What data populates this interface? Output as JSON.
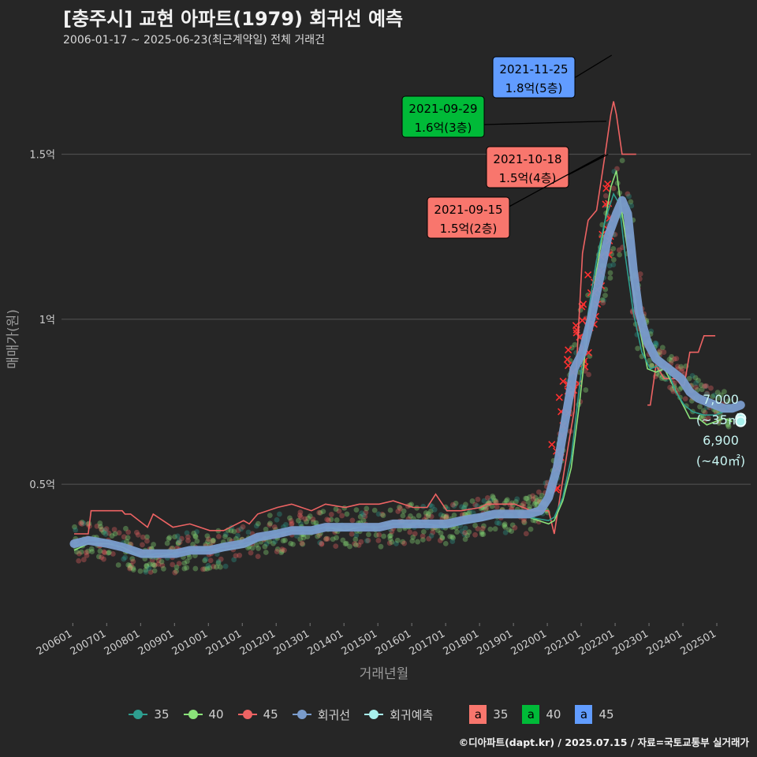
{
  "title": "[충주시] 교현 아파트(1979) 회귀선 예측",
  "subtitle": "2006-01-17 ~ 2025-06-23(최근계약일) 전체 거래건",
  "caption": "©디아파트(dapt.kr) / 2025.07.15 / 자료=국토교통부 실거래가",
  "colors": {
    "background": "#262626",
    "grid": "#555555",
    "area35": "#2e9e8f",
    "area40": "#8be37a",
    "area45": "#ee6363",
    "regression": "#7a9ccc",
    "forecast": "#a8f0ec",
    "label35": "#f8766d",
    "label40": "#00ba38",
    "label45": "#619cff"
  },
  "legend": {
    "lines": [
      {
        "label": "35",
        "color": "#2e9e8f"
      },
      {
        "label": "40",
        "color": "#8be37a"
      },
      {
        "label": "45",
        "color": "#ee6363"
      },
      {
        "label": "회귀선",
        "color": "#7a9ccc"
      },
      {
        "label": "회귀예측",
        "color": "#a8f0ec"
      }
    ],
    "boxes": [
      {
        "glyph": "a",
        "label": "35",
        "color": "#f8766d"
      },
      {
        "glyph": "a",
        "label": "40",
        "color": "#00ba38"
      },
      {
        "glyph": "a",
        "label": "45",
        "color": "#619cff"
      }
    ]
  },
  "chart_data": {
    "type": "line",
    "xlabel": "거래년월",
    "ylabel": "매매가(원)",
    "ylim": [
      0.08,
      1.8
    ],
    "y_unit": "억",
    "y_ticks": [
      {
        "value": 0.5,
        "label": "0.5억"
      },
      {
        "value": 1.0,
        "label": "1억"
      },
      {
        "value": 1.5,
        "label": "1.5억"
      }
    ],
    "x_ticks": [
      "200601",
      "200701",
      "200801",
      "200901",
      "201001",
      "201101",
      "201201",
      "201301",
      "201401",
      "201501",
      "201601",
      "201701",
      "201801",
      "201901",
      "202001",
      "202101",
      "202201",
      "202301",
      "202401",
      "202501"
    ],
    "grid": true,
    "series": [
      {
        "name": "45",
        "points": [
          [
            "2006-01",
            0.35
          ],
          [
            "2006-06",
            0.35
          ],
          [
            "2006-07",
            0.42
          ],
          [
            "2007-06",
            0.42
          ],
          [
            "2007-07",
            0.41
          ],
          [
            "2007-09",
            0.41
          ],
          [
            "2008-03",
            0.37
          ],
          [
            "2008-05",
            0.41
          ],
          [
            "2008-12",
            0.37
          ],
          [
            "2009-06",
            0.38
          ],
          [
            "2010-01",
            0.36
          ],
          [
            "2010-06",
            0.36
          ],
          [
            "2011-01",
            0.39
          ],
          [
            "2011-03",
            0.38
          ],
          [
            "2011-06",
            0.41
          ],
          [
            "2012-01",
            0.43
          ],
          [
            "2012-06",
            0.44
          ],
          [
            "2013-01",
            0.42
          ],
          [
            "2013-06",
            0.44
          ],
          [
            "2014-01",
            0.43
          ],
          [
            "2014-06",
            0.44
          ],
          [
            "2015-01",
            0.44
          ],
          [
            "2015-06",
            0.45
          ],
          [
            "2016-01",
            0.43
          ],
          [
            "2016-06",
            0.43
          ],
          [
            "2016-09",
            0.47
          ],
          [
            "2017-01",
            0.42
          ],
          [
            "2017-06",
            0.42
          ],
          [
            "2018-01",
            0.43
          ],
          [
            "2018-03",
            0.44
          ],
          [
            "2019-01",
            0.44
          ],
          [
            "2019-07",
            0.42
          ],
          [
            "2020-01",
            0.42
          ],
          [
            "2020-03",
            0.35
          ],
          [
            "2020-05",
            0.46
          ],
          [
            "2020-08",
            0.62
          ],
          [
            "2020-10",
            0.72
          ],
          [
            "2021-01",
            1.2
          ],
          [
            "2021-03",
            1.3
          ],
          [
            "2021-06",
            1.33
          ],
          [
            "2021-09",
            1.5
          ],
          [
            "2021-11",
            1.62
          ],
          [
            "2021-12",
            1.66
          ],
          [
            "2022-01",
            1.62
          ],
          [
            "2022-03",
            1.5
          ],
          [
            "2022-08",
            1.5
          ]
        ]
      },
      {
        "name": "45",
        "points": [
          [
            "2022-12",
            0.74
          ],
          [
            "2023-01",
            0.74
          ],
          [
            "2023-03",
            0.86
          ],
          [
            "2023-06",
            0.82
          ],
          [
            "2023-10",
            0.82
          ],
          [
            "2023-12",
            0.8
          ],
          [
            "2024-01",
            0.8
          ],
          [
            "2024-03",
            0.9
          ],
          [
            "2024-06",
            0.9
          ],
          [
            "2024-08",
            0.95
          ],
          [
            "2024-12",
            0.95
          ]
        ]
      },
      {
        "name": "40",
        "points": [
          [
            "2006-01",
            0.3
          ],
          [
            "2006-06",
            0.32
          ],
          [
            "2007-01",
            0.32
          ],
          [
            "2007-06",
            0.31
          ],
          [
            "2008-01",
            0.28
          ],
          [
            "2008-06",
            0.28
          ],
          [
            "2009-01",
            0.29
          ],
          [
            "2009-06",
            0.3
          ],
          [
            "2010-01",
            0.3
          ],
          [
            "2010-06",
            0.3
          ],
          [
            "2011-01",
            0.31
          ],
          [
            "2011-06",
            0.33
          ],
          [
            "2012-01",
            0.35
          ],
          [
            "2012-06",
            0.36
          ],
          [
            "2013-01",
            0.36
          ],
          [
            "2013-06",
            0.37
          ],
          [
            "2014-01",
            0.36
          ],
          [
            "2014-06",
            0.37
          ],
          [
            "2015-01",
            0.37
          ],
          [
            "2015-06",
            0.38
          ],
          [
            "2016-01",
            0.38
          ],
          [
            "2016-06",
            0.38
          ],
          [
            "2017-01",
            0.37
          ],
          [
            "2017-06",
            0.38
          ],
          [
            "2018-01",
            0.39
          ],
          [
            "2018-06",
            0.4
          ],
          [
            "2019-01",
            0.4
          ],
          [
            "2019-06",
            0.4
          ],
          [
            "2020-01",
            0.38
          ],
          [
            "2020-03",
            0.39
          ],
          [
            "2020-06",
            0.45
          ],
          [
            "2020-09",
            0.55
          ],
          [
            "2020-12",
            0.75
          ],
          [
            "2021-03",
            0.98
          ],
          [
            "2021-06",
            1.15
          ],
          [
            "2021-09",
            1.3
          ],
          [
            "2021-11",
            1.4
          ],
          [
            "2022-01",
            1.45
          ],
          [
            "2022-03",
            1.32
          ],
          [
            "2022-06",
            1.15
          ],
          [
            "2022-09",
            0.98
          ],
          [
            "2022-12",
            0.85
          ],
          [
            "2023-03",
            0.84
          ],
          [
            "2023-06",
            0.85
          ],
          [
            "2023-09",
            0.8
          ],
          [
            "2023-12",
            0.75
          ],
          [
            "2024-03",
            0.7
          ],
          [
            "2024-06",
            0.7
          ],
          [
            "2024-09",
            0.68
          ],
          [
            "2024-12",
            0.69
          ],
          [
            "2025-03",
            0.7
          ],
          [
            "2025-06",
            0.69
          ]
        ]
      },
      {
        "name": "35",
        "points": [
          [
            "2006-01",
            0.31
          ],
          [
            "2006-06",
            0.33
          ],
          [
            "2007-01",
            0.33
          ],
          [
            "2007-06",
            0.3
          ],
          [
            "2008-01",
            0.28
          ],
          [
            "2008-06",
            0.29
          ],
          [
            "2009-01",
            0.29
          ],
          [
            "2009-06",
            0.3
          ],
          [
            "2010-01",
            0.3
          ],
          [
            "2010-06",
            0.31
          ],
          [
            "2011-01",
            0.32
          ],
          [
            "2011-06",
            0.33
          ],
          [
            "2012-01",
            0.35
          ],
          [
            "2012-06",
            0.36
          ],
          [
            "2013-01",
            0.36
          ],
          [
            "2013-06",
            0.37
          ],
          [
            "2014-01",
            0.37
          ],
          [
            "2014-06",
            0.37
          ],
          [
            "2015-01",
            0.37
          ],
          [
            "2015-06",
            0.38
          ],
          [
            "2016-01",
            0.38
          ],
          [
            "2016-06",
            0.38
          ],
          [
            "2017-01",
            0.37
          ],
          [
            "2017-06",
            0.38
          ],
          [
            "2018-01",
            0.39
          ],
          [
            "2018-06",
            0.4
          ],
          [
            "2019-01",
            0.4
          ],
          [
            "2019-06",
            0.4
          ],
          [
            "2020-01",
            0.39
          ],
          [
            "2020-03",
            0.4
          ],
          [
            "2020-06",
            0.46
          ],
          [
            "2020-09",
            0.58
          ],
          [
            "2020-12",
            0.8
          ],
          [
            "2021-03",
            1.02
          ],
          [
            "2021-06",
            1.18
          ],
          [
            "2021-09",
            1.3
          ],
          [
            "2021-12",
            1.38
          ],
          [
            "2022-02",
            1.35
          ],
          [
            "2022-04",
            1.2
          ],
          [
            "2022-07",
            1.02
          ],
          [
            "2022-10",
            0.9
          ],
          [
            "2023-01",
            0.85
          ],
          [
            "2023-04",
            0.86
          ],
          [
            "2023-07",
            0.85
          ],
          [
            "2023-10",
            0.78
          ],
          [
            "2024-01",
            0.74
          ],
          [
            "2024-04",
            0.72
          ],
          [
            "2024-08",
            0.71
          ],
          [
            "2024-12",
            0.71
          ],
          [
            "2025-03",
            0.72
          ],
          [
            "2025-06",
            0.72
          ]
        ]
      },
      {
        "name": "회귀선",
        "points": [
          [
            "2006-01",
            0.32
          ],
          [
            "2006-06",
            0.33
          ],
          [
            "2007-01",
            0.32
          ],
          [
            "2007-06",
            0.31
          ],
          [
            "2008-01",
            0.29
          ],
          [
            "2008-06",
            0.29
          ],
          [
            "2009-01",
            0.29
          ],
          [
            "2009-06",
            0.3
          ],
          [
            "2010-01",
            0.3
          ],
          [
            "2010-06",
            0.31
          ],
          [
            "2011-01",
            0.32
          ],
          [
            "2011-06",
            0.34
          ],
          [
            "2012-01",
            0.35
          ],
          [
            "2012-06",
            0.36
          ],
          [
            "2013-01",
            0.36
          ],
          [
            "2013-06",
            0.37
          ],
          [
            "2014-01",
            0.37
          ],
          [
            "2014-06",
            0.37
          ],
          [
            "2015-01",
            0.37
          ],
          [
            "2015-06",
            0.38
          ],
          [
            "2016-01",
            0.38
          ],
          [
            "2016-06",
            0.38
          ],
          [
            "2017-01",
            0.38
          ],
          [
            "2017-06",
            0.39
          ],
          [
            "2018-01",
            0.4
          ],
          [
            "2018-06",
            0.41
          ],
          [
            "2019-01",
            0.41
          ],
          [
            "2019-06",
            0.41
          ],
          [
            "2019-10",
            0.42
          ],
          [
            "2020-01",
            0.46
          ],
          [
            "2020-04",
            0.55
          ],
          [
            "2020-07",
            0.7
          ],
          [
            "2020-10",
            0.85
          ],
          [
            "2021-01",
            0.9
          ],
          [
            "2021-04",
            1.0
          ],
          [
            "2021-07",
            1.12
          ],
          [
            "2021-10",
            1.25
          ],
          [
            "2022-01",
            1.32
          ],
          [
            "2022-03",
            1.36
          ],
          [
            "2022-05",
            1.32
          ],
          [
            "2022-07",
            1.15
          ],
          [
            "2022-09",
            1.02
          ],
          [
            "2022-12",
            0.93
          ],
          [
            "2023-03",
            0.88
          ],
          [
            "2023-06",
            0.86
          ],
          [
            "2023-09",
            0.84
          ],
          [
            "2023-12",
            0.82
          ],
          [
            "2024-03",
            0.78
          ],
          [
            "2024-06",
            0.76
          ],
          [
            "2024-09",
            0.75
          ],
          [
            "2024-12",
            0.74
          ],
          [
            "2025-03",
            0.73
          ],
          [
            "2025-06",
            0.73
          ],
          [
            "2025-09",
            0.74
          ]
        ]
      }
    ],
    "forecast": [
      {
        "area": "35",
        "date": "2025-09",
        "value": 0.7,
        "label": "7,000",
        "sublabel": "(~35㎡)"
      },
      {
        "area": "40",
        "date": "2025-09",
        "value": 0.69,
        "label": "6,900",
        "sublabel": "(~40㎡)"
      }
    ],
    "annotations": [
      {
        "date": "2021-11-25",
        "price": "1.8억(5층)",
        "value": 1.8,
        "color": "#619cff"
      },
      {
        "date": "2021-09-29",
        "price": "1.6억(3층)",
        "value": 1.6,
        "color": "#00ba38"
      },
      {
        "date": "2021-10-18",
        "price": "1.5억(4층)",
        "value": 1.5,
        "color": "#f8766d"
      },
      {
        "date": "2021-09-15",
        "price": "1.5억(2층)",
        "value": 1.5,
        "color": "#f8766d"
      }
    ]
  }
}
